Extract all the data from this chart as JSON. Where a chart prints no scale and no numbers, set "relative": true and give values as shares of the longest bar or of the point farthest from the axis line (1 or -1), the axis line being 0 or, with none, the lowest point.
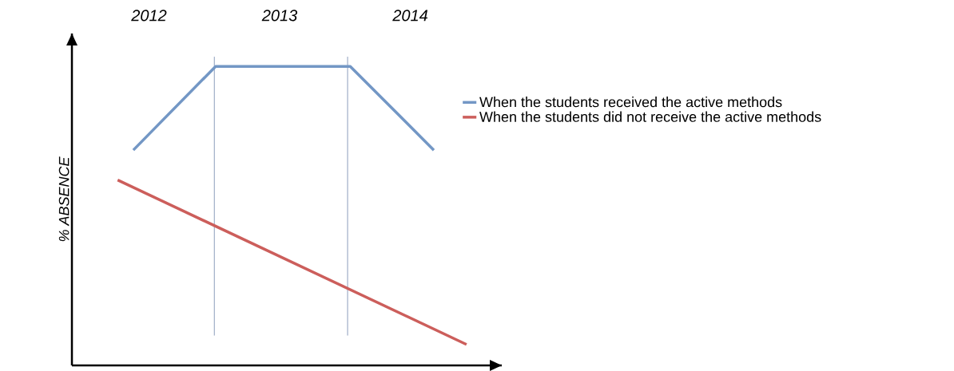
{
  "chart_data": {
    "type": "line",
    "relative": true,
    "ylabel": "% ABSENCE",
    "xlim": [
      2011.41,
      2014.7
    ],
    "xticks": [
      2012,
      2013,
      2014
    ],
    "ref_lines": [
      {
        "axis": "x",
        "value": 2012.5,
        "color": "#8c9dbb"
      },
      {
        "axis": "x",
        "value": 2013.52,
        "color": "#8c9dbb"
      }
    ],
    "legend": "right",
    "marker": "none",
    "line_style": "solid",
    "series": [
      {
        "name": "When the students received the active methods",
        "color": "#7397c5",
        "x": [
          2011.88,
          2012.51,
          2013.54,
          2014.18
        ],
        "values": [
          0.72,
          1,
          1,
          0.72
        ]
      },
      {
        "name": "When the students did not receive the active methods",
        "color": "#cc5e5b",
        "x": [
          2011.76,
          2014.43
        ],
        "values": [
          0.62,
          0.07
        ]
      }
    ]
  }
}
